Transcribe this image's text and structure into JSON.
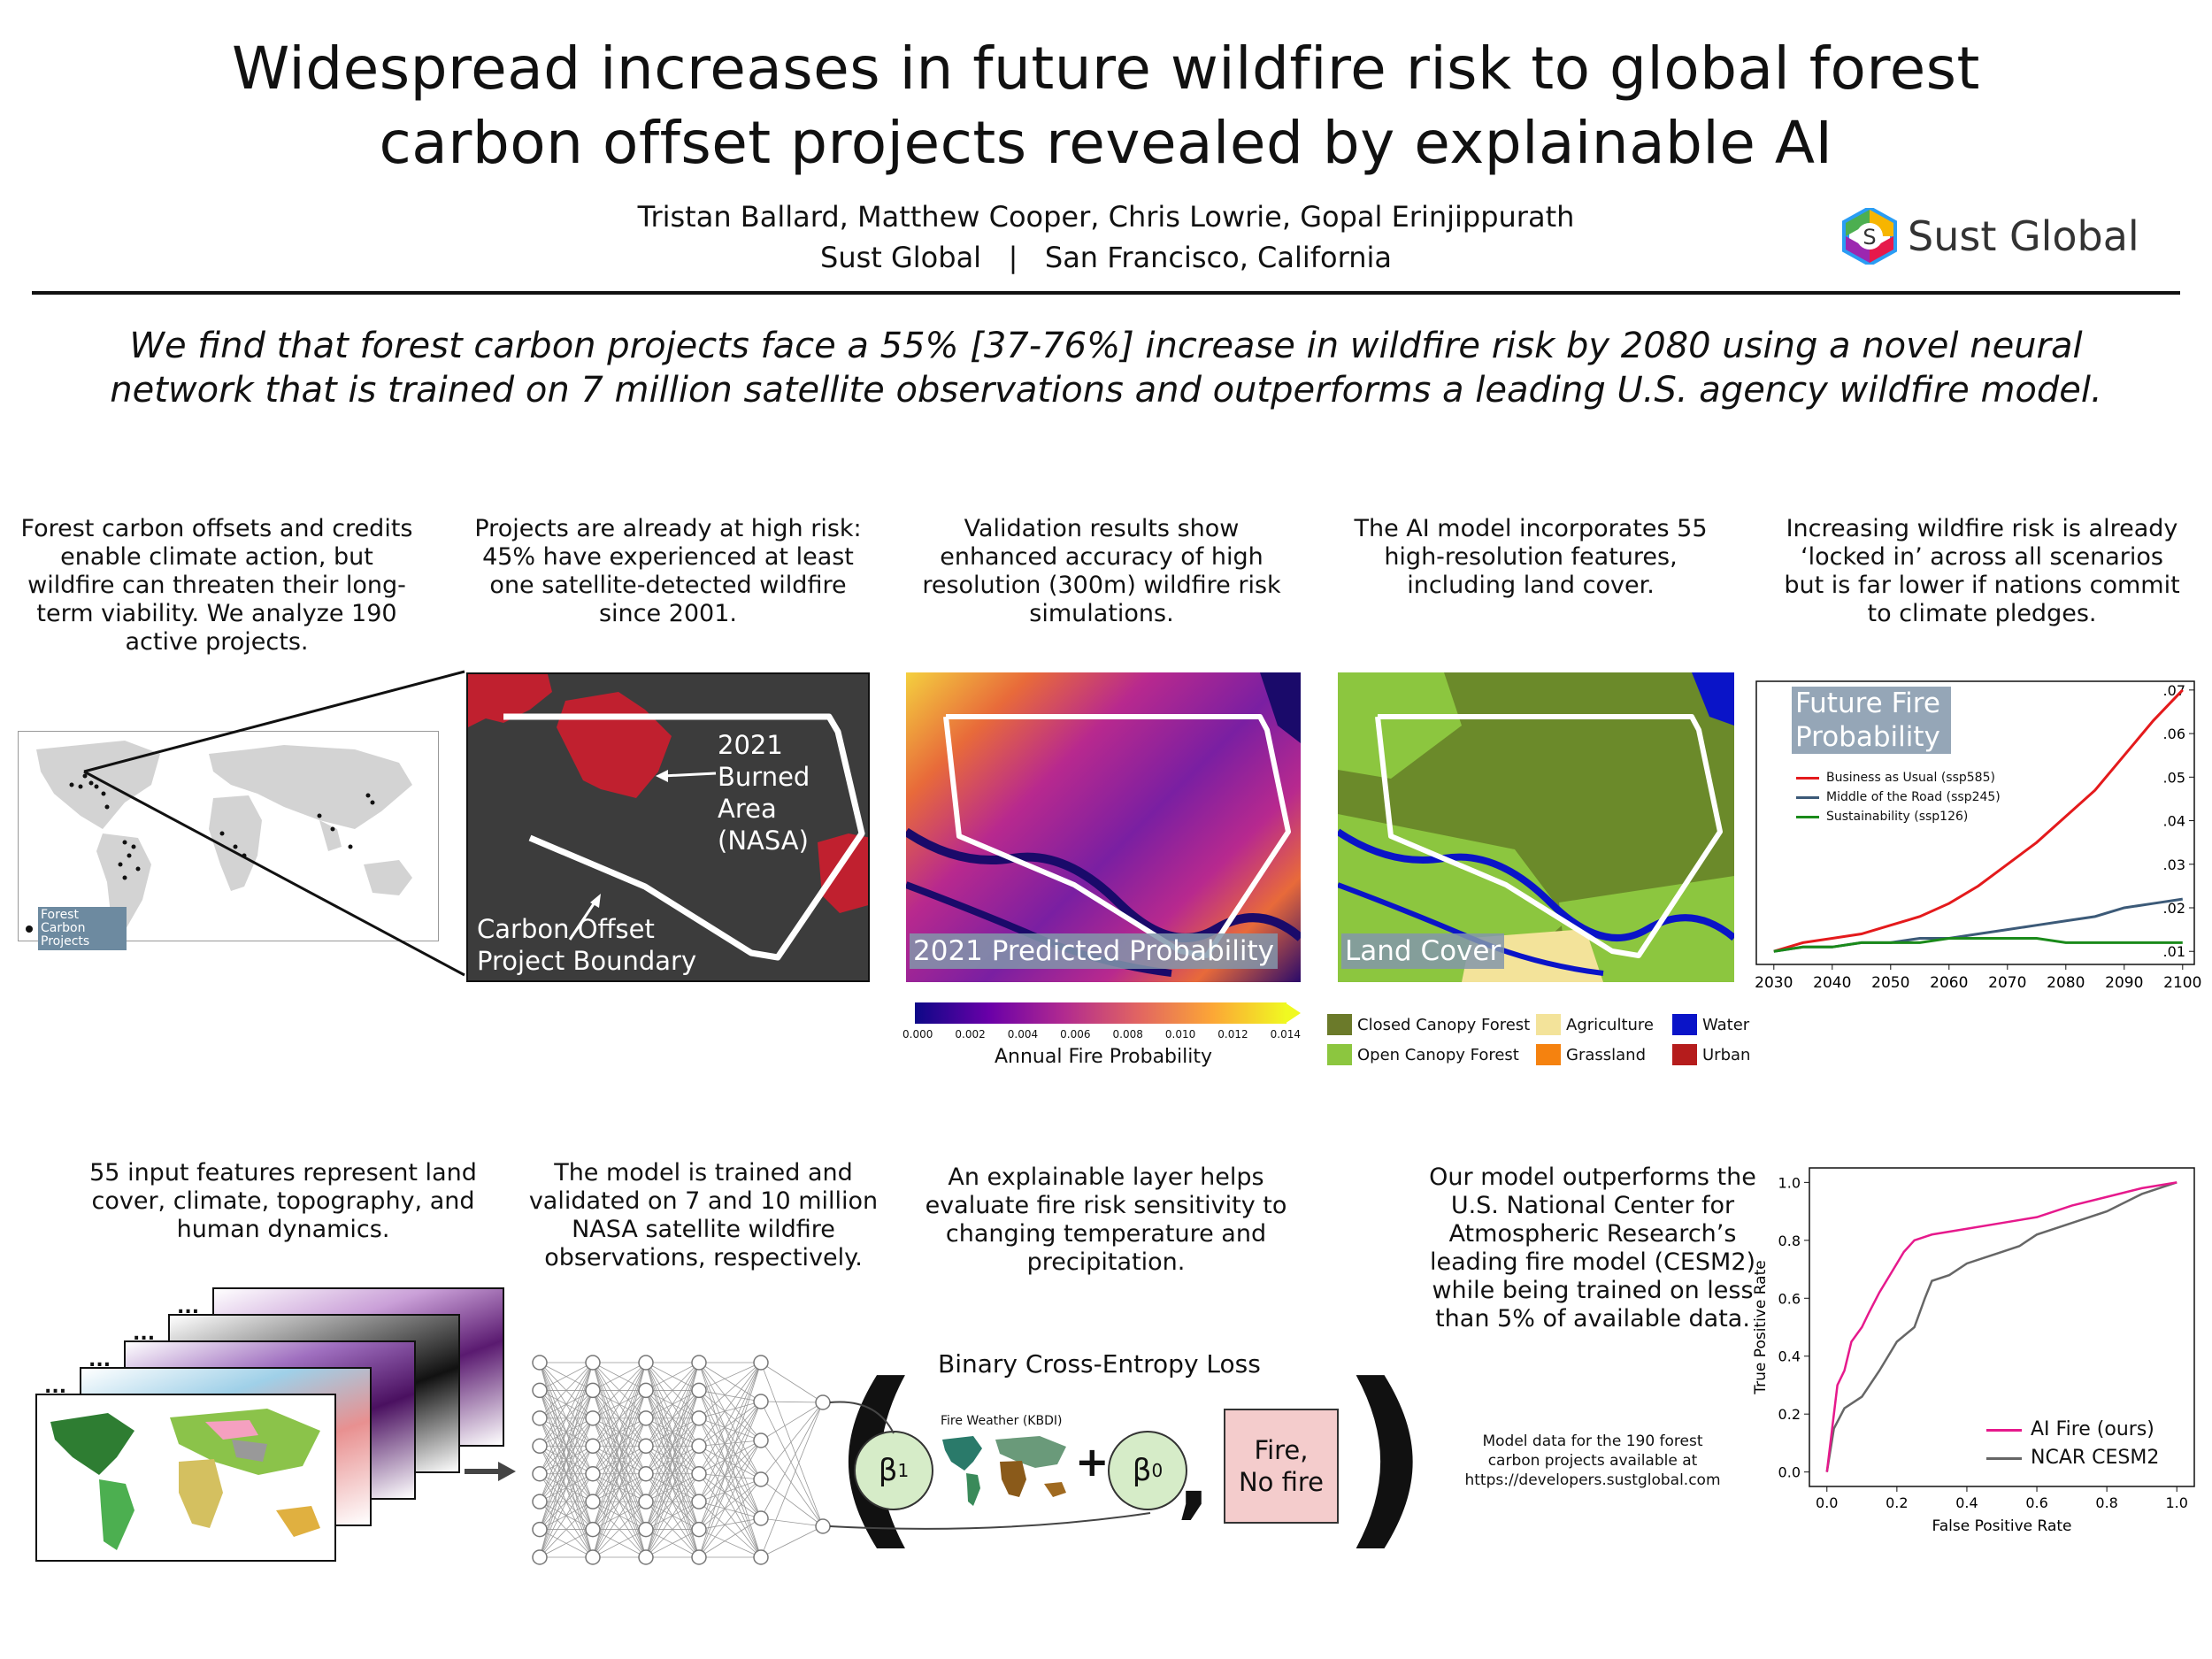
{
  "header": {
    "title_line1": "Widespread increases in future wildfire risk to global forest",
    "title_line2": "carbon offset projects revealed by explainable AI",
    "authors": "Tristan Ballard, Matthew Cooper, Chris Lowrie, Gopal Erinjippurath",
    "affiliation": "Sust Global   |   San Francisco, California",
    "logo_text": "Sust Global",
    "logo_mark": "S"
  },
  "summary_line1": "We find that forest carbon projects face a 55% [37-76%] increase in wildfire risk by 2080 using a novel neural",
  "summary_line2": "network that is trained on 7 million satellite observations and outperforms a leading U.S. agency wildfire model.",
  "row1": {
    "cap1": "Forest carbon offsets and credits enable climate action, but wildfire can threaten their long-term viability. We analyze 190 active projects.",
    "cap2": "Projects are already at high risk: 45% have experienced at least one satellite-detected wildfire since 2001.",
    "cap3": "Validation results show enhanced accuracy of high resolution (300m) wildfire risk simulations.",
    "cap4": "The AI model incorporates 55 high-resolution features, including land cover.",
    "cap5": "Increasing wildfire risk is already ‘locked in’ across all scenarios but is far lower if nations commit to climate pledges.",
    "map_legend": "Forest Carbon Projects",
    "burn_label_1": "2021",
    "burn_label_2": "Burned",
    "burn_label_3": "Area",
    "burn_label_4": "(NASA)",
    "boundary_label_1": "Carbon Offset",
    "boundary_label_2": "Project Boundary",
    "pred_label": "2021 Predicted Probability",
    "colorbar_ticks": [
      "0.000",
      "0.002",
      "0.004",
      "0.006",
      "0.008",
      "0.010",
      "0.012",
      "0.014"
    ],
    "colorbar_label": "Annual Fire Probability",
    "lc_label": "Land Cover",
    "lc_legend": [
      {
        "name": "Closed Canopy Forest",
        "color": "#6b7a2a"
      },
      {
        "name": "Open Canopy Forest",
        "color": "#8cc63f"
      },
      {
        "name": "Agriculture",
        "color": "#f3e39a"
      },
      {
        "name": "Grassland",
        "color": "#f5820f"
      },
      {
        "name": "Water",
        "color": "#0a14c8"
      },
      {
        "name": "Urban",
        "color": "#b51c1c"
      }
    ]
  },
  "row2": {
    "cap1": "55 input features represent land cover, climate, topography, and human dynamics.",
    "cap2": "The model is trained and validated on 7 and 10 million NASA satellite wildfire observations, respectively.",
    "cap3": "An explainable layer helps evaluate fire risk sensitivity to changing temperature and precipitation.",
    "cap4": "Our model outperforms the U.S. National Center for Atmospheric Research’s leading fire model (CESM2) while being trained on less than 5% of available data.",
    "data_note_1": "Model data for the 190 forest",
    "data_note_2": "carbon projects available at",
    "data_note_3": "https://developers.sustglobal.com",
    "bce_title": "Binary Cross-Entropy Loss",
    "beta1": "β",
    "beta1_sub": "1",
    "beta0": "β",
    "beta0_sub": "0",
    "kbdi_label": "Fire Weather (KBDI)",
    "plus": "+",
    "comma": ",",
    "paren_open": "(",
    "paren_close": ")",
    "fire_box_1": "Fire,",
    "fire_box_2": "No fire",
    "ellipsis": "..."
  },
  "chart_data": [
    {
      "type": "line",
      "title": "Future Fire Probability",
      "x": [
        2030,
        2035,
        2040,
        2045,
        2050,
        2055,
        2060,
        2065,
        2070,
        2075,
        2080,
        2085,
        2090,
        2095,
        2100
      ],
      "series": [
        {
          "name": "Business as Usual (ssp585)",
          "color": "#e41a1c",
          "values": [
            0.01,
            0.012,
            0.013,
            0.014,
            0.016,
            0.018,
            0.021,
            0.025,
            0.03,
            0.035,
            0.041,
            0.047,
            0.055,
            0.063,
            0.07
          ]
        },
        {
          "name": "Middle of the Road (ssp245)",
          "color": "#3c5a78",
          "values": [
            0.01,
            0.011,
            0.011,
            0.012,
            0.012,
            0.013,
            0.013,
            0.014,
            0.015,
            0.016,
            0.017,
            0.018,
            0.02,
            0.021,
            0.022
          ]
        },
        {
          "name": "Sustainability (ssp126)",
          "color": "#1a8a1a",
          "values": [
            0.01,
            0.011,
            0.011,
            0.012,
            0.012,
            0.012,
            0.013,
            0.013,
            0.013,
            0.013,
            0.012,
            0.012,
            0.012,
            0.012,
            0.012
          ]
        }
      ],
      "xticks": [
        "2030",
        "2040",
        "2050",
        "2060",
        "2070",
        "2080",
        "2090",
        "2100"
      ],
      "yticks": [
        ".01",
        ".02",
        ".03",
        ".04",
        ".05",
        ".06",
        ".07"
      ],
      "ylim": [
        0.007,
        0.072
      ],
      "xlim": [
        2027,
        2102
      ]
    },
    {
      "type": "line",
      "title": "",
      "xlabel": "False Positive Rate",
      "ylabel": "True Positive Rate",
      "xticks": [
        "0.0",
        "0.2",
        "0.4",
        "0.6",
        "0.8",
        "1.0"
      ],
      "yticks": [
        "0.0",
        "0.2",
        "0.4",
        "0.6",
        "0.8",
        "1.0"
      ],
      "series": [
        {
          "name": "AI Fire (ours)",
          "color": "#e6198c",
          "x": [
            0,
            0.01,
            0.02,
            0.03,
            0.05,
            0.07,
            0.1,
            0.12,
            0.15,
            0.18,
            0.2,
            0.22,
            0.25,
            0.3,
            0.35,
            0.4,
            0.5,
            0.6,
            0.7,
            0.8,
            0.9,
            1.0
          ],
          "y": [
            0,
            0.1,
            0.2,
            0.3,
            0.35,
            0.45,
            0.5,
            0.55,
            0.62,
            0.68,
            0.72,
            0.76,
            0.8,
            0.82,
            0.83,
            0.84,
            0.86,
            0.88,
            0.92,
            0.95,
            0.98,
            1.0
          ]
        },
        {
          "name": "NCAR CESM2",
          "color": "#666666",
          "x": [
            0,
            0.02,
            0.05,
            0.1,
            0.15,
            0.2,
            0.25,
            0.28,
            0.3,
            0.35,
            0.4,
            0.45,
            0.5,
            0.55,
            0.6,
            0.7,
            0.8,
            0.9,
            1.0
          ],
          "y": [
            0,
            0.15,
            0.22,
            0.26,
            0.35,
            0.45,
            0.5,
            0.6,
            0.66,
            0.68,
            0.72,
            0.74,
            0.76,
            0.78,
            0.82,
            0.86,
            0.9,
            0.96,
            1.0
          ]
        }
      ],
      "xlim": [
        -0.05,
        1.05
      ],
      "ylim": [
        -0.05,
        1.05
      ]
    }
  ]
}
